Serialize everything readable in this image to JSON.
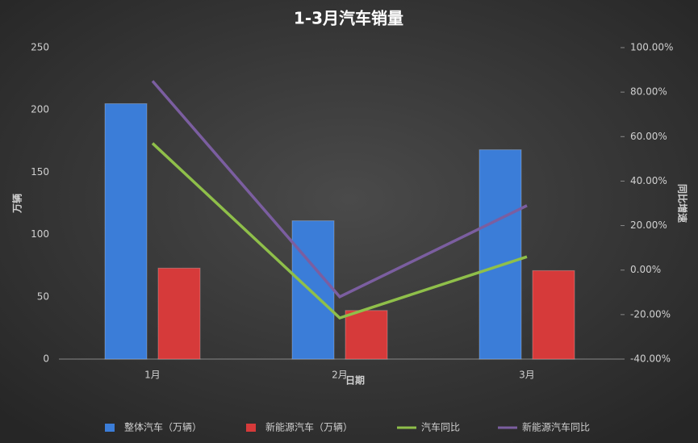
{
  "chart_data": {
    "type": "bar",
    "title": "1-3月汽车销量",
    "x_label": "日期",
    "y_label": "万辆",
    "y2_label": "同比增速",
    "categories": [
      "1月",
      "2月",
      "3月"
    ],
    "series": [
      {
        "name": "整体汽车（万辆）",
        "type": "bar",
        "color": "#3b7dd8",
        "values": [
          205,
          111,
          168
        ]
      },
      {
        "name": "新能源汽车（万辆）",
        "type": "bar",
        "color": "#d63a3a",
        "values": [
          73,
          39,
          71
        ]
      },
      {
        "name": "汽车同比",
        "type": "line",
        "axis": "y2",
        "color": "#8fbf4a",
        "values": [
          57,
          -21.5,
          6
        ]
      },
      {
        "name": "新能源汽车同比",
        "type": "line",
        "axis": "y2",
        "color": "#7b5ea0",
        "values": [
          85,
          -12,
          29
        ]
      }
    ],
    "ylim": [
      0,
      250
    ],
    "yticks": [
      0,
      50,
      100,
      150,
      200,
      250
    ],
    "y2lim": [
      -40,
      100
    ],
    "y2ticks": [
      {
        "value": -40,
        "label": "-40.00%"
      },
      {
        "value": -20,
        "label": "-20.00%"
      },
      {
        "value": 0,
        "label": "0.00%"
      },
      {
        "value": 20,
        "label": "20.00%"
      },
      {
        "value": 40,
        "label": "40.00%"
      },
      {
        "value": 60,
        "label": "60.00%"
      },
      {
        "value": 80,
        "label": "80.00%"
      },
      {
        "value": 100,
        "label": "100.00%"
      }
    ],
    "grid": false,
    "legend": "bottom"
  }
}
